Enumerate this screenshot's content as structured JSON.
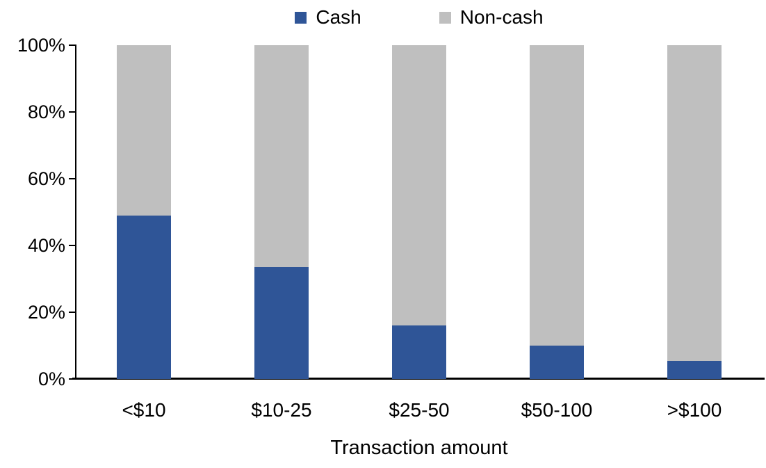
{
  "chart_data": {
    "type": "bar",
    "stacked": true,
    "stack_total": 100,
    "title": "",
    "xlabel": "Transaction amount",
    "ylabel": "",
    "categories": [
      "<$10",
      "$10-25",
      "$25-50",
      "$50-100",
      ">$100"
    ],
    "series": [
      {
        "name": "Cash",
        "color": "#2F5597",
        "values": [
          49,
          33.5,
          16,
          10,
          5.5
        ]
      },
      {
        "name": "Non-cash",
        "color": "#BFBFBF",
        "values": [
          51,
          66.5,
          84,
          90,
          94.5
        ]
      }
    ],
    "ylim": [
      0,
      100
    ],
    "yticks": [
      {
        "value": 0,
        "label": "0%"
      },
      {
        "value": 20,
        "label": "20%"
      },
      {
        "value": 40,
        "label": "40%"
      },
      {
        "value": 60,
        "label": "60%"
      },
      {
        "value": 80,
        "label": "80%"
      },
      {
        "value": 100,
        "label": "100%"
      }
    ],
    "legend_position": "top",
    "grid": false,
    "axis_color": "#000000",
    "text_color": "#000000"
  }
}
